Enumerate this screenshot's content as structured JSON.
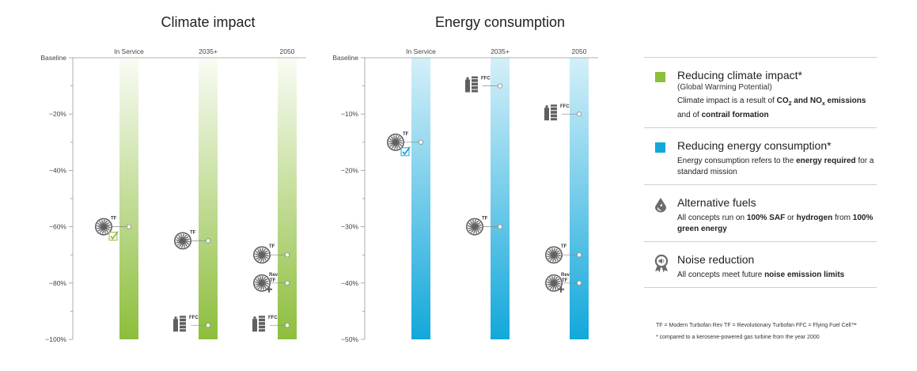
{
  "chart_data": [
    {
      "type": "bar",
      "title": "Climate impact",
      "ylim": [
        -100,
        0
      ],
      "y_ticks": [
        "Baseline",
        "−20%",
        "−40%",
        "−60%",
        "−80%",
        "−100%"
      ],
      "categories": [
        "In Service",
        "2035+",
        "2050"
      ],
      "series": [
        {
          "name": "TF",
          "values": [
            -60,
            -65,
            -70
          ]
        },
        {
          "name": "Rev TF",
          "values": [
            null,
            null,
            -80
          ]
        },
        {
          "name": "FFC",
          "values": [
            null,
            -95,
            -95
          ]
        }
      ],
      "color": "#8dbe3c",
      "legend_position": "right"
    },
    {
      "type": "bar",
      "title": "Energy consumption",
      "ylim": [
        -50,
        0
      ],
      "y_ticks": [
        "Baseline",
        "−10%",
        "−20%",
        "−30%",
        "−40%",
        "−50%"
      ],
      "categories": [
        "In Service",
        "2035+",
        "2050"
      ],
      "series": [
        {
          "name": "TF",
          "values": [
            -15,
            -30,
            -35
          ]
        },
        {
          "name": "Rev TF",
          "values": [
            null,
            null,
            -40
          ]
        },
        {
          "name": "FFC",
          "values": [
            null,
            -5,
            -10
          ]
        }
      ],
      "color": "#12a8db",
      "legend_position": "right"
    }
  ],
  "legend": {
    "items": [
      {
        "title": "Reducing climate impact*",
        "sub": "(Global Warming Potential)",
        "desc_html": "Climate impact is a result of <b>CO<sub style=\"font-size:7px\">2</sub> and NO<sub style=\"font-size:7px\">x</sub> emissions</b> and of <b>contrail formation</b>",
        "icon": "green-square"
      },
      {
        "title": "Reducing energy consumption*",
        "sub": "",
        "desc_html": "Energy consumption refers to the <b>energy required</b> for a standard mission",
        "icon": "blue-square"
      },
      {
        "title": "Alternative fuels",
        "sub": "",
        "desc_html": "All concepts run on <b>100% SAF</b> or <b>hydrogen</b> from <b>100% green energy</b>",
        "icon": "fuel-drop-icon"
      },
      {
        "title": "Noise reduction",
        "sub": "",
        "desc_html": "All concepts meet future <b>noise emission limits</b>",
        "icon": "noise-badge-icon"
      }
    ],
    "colors": {
      "green": "#8dbe3c",
      "blue": "#12a8db",
      "icon_gray": "#6b6b6b"
    }
  },
  "footnotes": {
    "abbrev": "TF = Modern Turbofan    Rev TF = Revolutionary Turbofan    FFC = Flying Fuel Cell™",
    "star": "* compared to a kerosene-powered gas turbine from the year 2000"
  }
}
